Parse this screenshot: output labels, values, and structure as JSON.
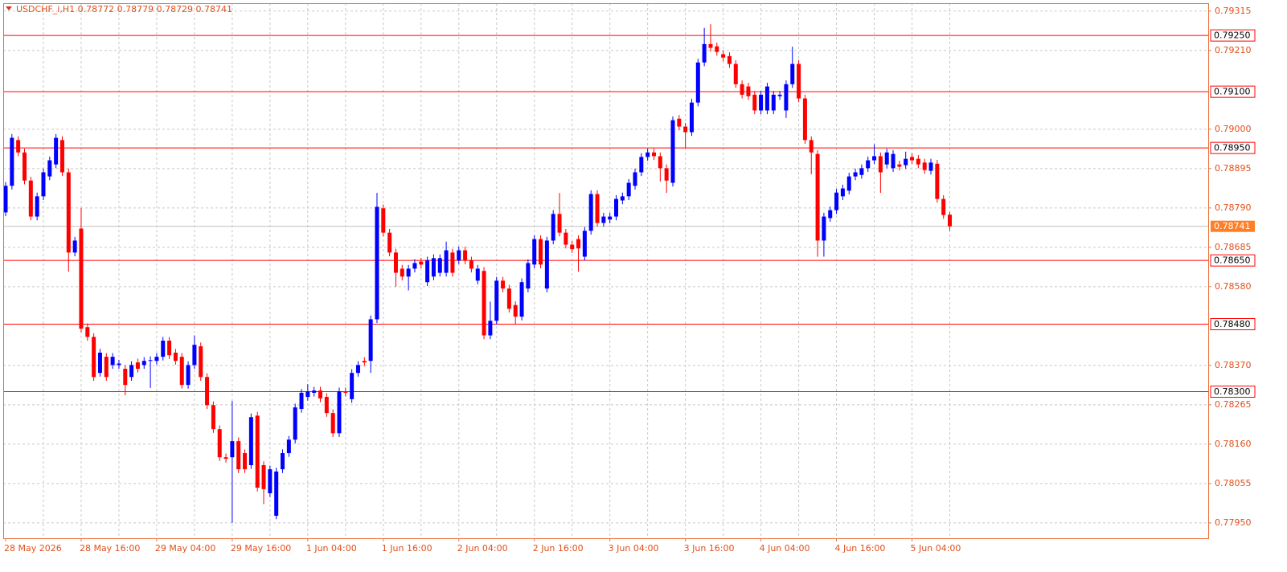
{
  "chart_data": {
    "type": "candlestick",
    "title": "USDCHF_i,H1  0.78772 0.78779 0.78729 0.78741",
    "up_color": "#0000ff",
    "down_color": "#ff0000",
    "level_color": "#ff0000",
    "current_color": "#ff7f27",
    "grid": true,
    "ylim": [
      0.77909,
      0.79336
    ],
    "yticks": [
      {
        "value": 0.79315,
        "label": "0.79315"
      },
      {
        "value": 0.7921,
        "label": "0.79210"
      },
      {
        "value": 0.79,
        "label": "0.79000"
      },
      {
        "value": 0.78895,
        "label": "0.78895"
      },
      {
        "value": 0.7879,
        "label": "0.78790"
      },
      {
        "value": 0.78685,
        "label": "0.78685"
      },
      {
        "value": 0.7858,
        "label": "0.78580"
      },
      {
        "value": 0.7837,
        "label": "0.78370"
      },
      {
        "value": 0.78265,
        "label": "0.78265"
      },
      {
        "value": 0.7816,
        "label": "0.78160"
      },
      {
        "value": 0.78055,
        "label": "0.78055"
      },
      {
        "value": 0.7795,
        "label": "0.77950"
      }
    ],
    "levels": [
      {
        "value": 0.7925,
        "label": "0.79250"
      },
      {
        "value": 0.791,
        "label": "0.79100"
      },
      {
        "value": 0.7895,
        "label": "0.78950"
      },
      {
        "value": 0.7865,
        "label": "0.78650"
      },
      {
        "value": 0.7848,
        "label": "0.78480"
      },
      {
        "value": 0.783,
        "label": "0.78300"
      }
    ],
    "current_price": 0.78741,
    "categories": [
      "28 May 2026",
      null,
      null,
      null,
      null,
      null,
      null,
      null,
      null,
      null,
      null,
      null,
      "28 May 16:00",
      null,
      null,
      null,
      null,
      null,
      null,
      null,
      null,
      null,
      null,
      null,
      "29 May 04:00",
      null,
      null,
      null,
      null,
      null,
      null,
      null,
      null,
      null,
      null,
      null,
      "29 May 16:00",
      null,
      null,
      null,
      null,
      null,
      null,
      null,
      null,
      null,
      null,
      null,
      "1 Jun 04:00",
      null,
      null,
      null,
      null,
      null,
      null,
      null,
      null,
      null,
      null,
      null,
      "1 Jun 16:00",
      null,
      null,
      null,
      null,
      null,
      null,
      null,
      null,
      null,
      null,
      null,
      "2 Jun 04:00",
      null,
      null,
      null,
      null,
      null,
      null,
      null,
      null,
      null,
      null,
      null,
      "2 Jun 16:00",
      null,
      null,
      null,
      null,
      null,
      null,
      null,
      null,
      null,
      null,
      null,
      "3 Jun 04:00",
      null,
      null,
      null,
      null,
      null,
      null,
      null,
      null,
      null,
      null,
      null,
      "3 Jun 16:00",
      null,
      null,
      null,
      null,
      null,
      null,
      null,
      null,
      null,
      null,
      null,
      "4 Jun 04:00",
      null,
      null,
      null,
      null,
      null,
      null,
      null,
      null,
      null,
      null,
      null,
      "4 Jun 16:00",
      null,
      null,
      null,
      null,
      null,
      null,
      null,
      null,
      null,
      null,
      null,
      "5 Jun 04:00",
      null,
      null,
      null,
      null,
      null,
      null
    ],
    "candles": [
      [
        0.78778,
        0.78859,
        0.78768,
        0.78849
      ],
      [
        0.78849,
        0.78987,
        0.78839,
        0.78977
      ],
      [
        0.78971,
        0.78981,
        0.78928,
        0.78938
      ],
      [
        0.78938,
        0.78948,
        0.78853,
        0.78863
      ],
      [
        0.78863,
        0.78873,
        0.78757,
        0.78767
      ],
      [
        0.78767,
        0.78831,
        0.78757,
        0.78821
      ],
      [
        0.78821,
        0.78895,
        0.78811,
        0.78885
      ],
      [
        0.78874,
        0.78927,
        0.78864,
        0.78917
      ],
      [
        0.78906,
        0.78987,
        0.78896,
        0.78977
      ],
      [
        0.78971,
        0.78981,
        0.78875,
        0.78885
      ],
      [
        0.78885,
        0.78895,
        0.7862,
        0.78671
      ],
      [
        0.78671,
        0.78713,
        0.78661,
        0.78703
      ],
      [
        0.78735,
        0.7879,
        0.78458,
        0.78468
      ],
      [
        0.78472,
        0.78482,
        0.78436,
        0.78446
      ],
      [
        0.78446,
        0.78456,
        0.78329,
        0.78339
      ],
      [
        0.7835,
        0.78414,
        0.7834,
        0.78404
      ],
      [
        0.78393,
        0.78403,
        0.78329,
        0.78339
      ],
      [
        0.78371,
        0.78403,
        0.78361,
        0.78393
      ],
      [
        0.78371,
        0.78385,
        0.78361,
        0.78375
      ],
      [
        0.78361,
        0.78371,
        0.7829,
        0.78318
      ],
      [
        0.78339,
        0.78381,
        0.78329,
        0.78371
      ],
      [
        0.78378,
        0.78388,
        0.78351,
        0.78361
      ],
      [
        0.78371,
        0.78392,
        0.78361,
        0.78382
      ],
      [
        0.78382,
        0.78394,
        0.7831,
        0.78384
      ],
      [
        0.78382,
        0.78403,
        0.78372,
        0.78393
      ],
      [
        0.78393,
        0.78446,
        0.78383,
        0.78436
      ],
      [
        0.78436,
        0.78446,
        0.78387,
        0.78397
      ],
      [
        0.78404,
        0.78414,
        0.78372,
        0.78382
      ],
      [
        0.78393,
        0.78403,
        0.78308,
        0.78318
      ],
      [
        0.78318,
        0.78381,
        0.78308,
        0.78371
      ],
      [
        0.78371,
        0.7845,
        0.78361,
        0.78425
      ],
      [
        0.78421,
        0.78431,
        0.78329,
        0.78339
      ],
      [
        0.78339,
        0.78349,
        0.78254,
        0.78264
      ],
      [
        0.78264,
        0.78274,
        0.7819,
        0.782
      ],
      [
        0.782,
        0.7821,
        0.78115,
        0.78125
      ],
      [
        0.78125,
        0.78135,
        0.78111,
        0.78121
      ],
      [
        0.78125,
        0.78275,
        0.7795,
        0.78168
      ],
      [
        0.78168,
        0.78178,
        0.78083,
        0.78093
      ],
      [
        0.78136,
        0.78146,
        0.78083,
        0.78093
      ],
      [
        0.78104,
        0.78242,
        0.78094,
        0.78232
      ],
      [
        0.78236,
        0.78246,
        0.78034,
        0.78044
      ],
      [
        0.78104,
        0.78114,
        0.78,
        0.7804
      ],
      [
        0.78029,
        0.78103,
        0.78019,
        0.78093
      ],
      [
        0.77969,
        0.78097,
        0.7796,
        0.78087
      ],
      [
        0.78093,
        0.78146,
        0.78083,
        0.78136
      ],
      [
        0.78136,
        0.78182,
        0.78126,
        0.78172
      ],
      [
        0.78172,
        0.78268,
        0.78162,
        0.78258
      ],
      [
        0.78254,
        0.78307,
        0.78244,
        0.78297
      ],
      [
        0.78286,
        0.7832,
        0.78276,
        0.78301
      ],
      [
        0.78297,
        0.78313,
        0.78287,
        0.78303
      ],
      [
        0.78303,
        0.78313,
        0.78272,
        0.78282
      ],
      [
        0.78286,
        0.78296,
        0.78233,
        0.78243
      ],
      [
        0.78243,
        0.78253,
        0.78179,
        0.78189
      ],
      [
        0.78189,
        0.78311,
        0.78179,
        0.78301
      ],
      [
        0.78301,
        0.78311,
        0.78287,
        0.78297
      ],
      [
        0.7828,
        0.7836,
        0.7827,
        0.7835
      ],
      [
        0.7835,
        0.78381,
        0.7834,
        0.78371
      ],
      [
        0.78382,
        0.78392,
        0.78368,
        0.78378
      ],
      [
        0.78382,
        0.78503,
        0.7835,
        0.78493
      ],
      [
        0.78493,
        0.7883,
        0.78483,
        0.78793
      ],
      [
        0.78789,
        0.78799,
        0.78714,
        0.78724
      ],
      [
        0.78724,
        0.78734,
        0.78661,
        0.78671
      ],
      [
        0.78671,
        0.78681,
        0.7858,
        0.78617
      ],
      [
        0.78628,
        0.78638,
        0.78597,
        0.78607
      ],
      [
        0.78607,
        0.78638,
        0.7857,
        0.78628
      ],
      [
        0.78628,
        0.78653,
        0.78618,
        0.78643
      ],
      [
        0.78647,
        0.78657,
        0.78629,
        0.78639
      ],
      [
        0.78592,
        0.7866,
        0.78582,
        0.7865
      ],
      [
        0.78607,
        0.78666,
        0.78597,
        0.78656
      ],
      [
        0.78617,
        0.78666,
        0.78607,
        0.78656
      ],
      [
        0.78617,
        0.787,
        0.78607,
        0.78677
      ],
      [
        0.78671,
        0.78681,
        0.78607,
        0.78617
      ],
      [
        0.7865,
        0.78687,
        0.7864,
        0.78677
      ],
      [
        0.78677,
        0.78687,
        0.7864,
        0.7865
      ],
      [
        0.7865,
        0.7866,
        0.78618,
        0.78628
      ],
      [
        0.78596,
        0.78638,
        0.78586,
        0.78628
      ],
      [
        0.78622,
        0.78632,
        0.7844,
        0.7845
      ],
      [
        0.7845,
        0.7854,
        0.7844,
        0.78489
      ],
      [
        0.78489,
        0.78606,
        0.78479,
        0.78596
      ],
      [
        0.78596,
        0.78606,
        0.78565,
        0.78575
      ],
      [
        0.78575,
        0.78585,
        0.78511,
        0.78521
      ],
      [
        0.78531,
        0.78541,
        0.7848,
        0.785
      ],
      [
        0.785,
        0.78602,
        0.7849,
        0.78592
      ],
      [
        0.78575,
        0.78653,
        0.78565,
        0.78643
      ],
      [
        0.78639,
        0.78717,
        0.78629,
        0.78707
      ],
      [
        0.78707,
        0.78717,
        0.78629,
        0.78639
      ],
      [
        0.78575,
        0.78713,
        0.78565,
        0.78703
      ],
      [
        0.78703,
        0.78784,
        0.78693,
        0.78774
      ],
      [
        0.78774,
        0.7883,
        0.78714,
        0.78724
      ],
      [
        0.78724,
        0.78734,
        0.78682,
        0.78692
      ],
      [
        0.78692,
        0.78702,
        0.7867,
        0.7868
      ],
      [
        0.78707,
        0.78717,
        0.7862,
        0.78682
      ],
      [
        0.7866,
        0.78739,
        0.7865,
        0.78729
      ],
      [
        0.78729,
        0.78837,
        0.78719,
        0.78827
      ],
      [
        0.78827,
        0.78837,
        0.7874,
        0.7875
      ],
      [
        0.7875,
        0.78777,
        0.7874,
        0.78767
      ],
      [
        0.78759,
        0.78777,
        0.78749,
        0.78767
      ],
      [
        0.78767,
        0.78824,
        0.78757,
        0.78814
      ],
      [
        0.7881,
        0.78831,
        0.788,
        0.78821
      ],
      [
        0.78821,
        0.78867,
        0.78811,
        0.78857
      ],
      [
        0.78849,
        0.78895,
        0.78839,
        0.78885
      ],
      [
        0.78885,
        0.78936,
        0.78875,
        0.78926
      ],
      [
        0.78926,
        0.78948,
        0.78916,
        0.78938
      ],
      [
        0.78938,
        0.78948,
        0.78918,
        0.78928
      ],
      [
        0.78928,
        0.78938,
        0.7886,
        0.78896
      ],
      [
        0.78896,
        0.78906,
        0.7883,
        0.78863
      ],
      [
        0.78857,
        0.79034,
        0.78847,
        0.79024
      ],
      [
        0.79028,
        0.79038,
        0.78997,
        0.79007
      ],
      [
        0.79007,
        0.79017,
        0.7895,
        0.78992
      ],
      [
        0.78992,
        0.79081,
        0.78982,
        0.79071
      ],
      [
        0.79071,
        0.79188,
        0.79061,
        0.79178
      ],
      [
        0.79178,
        0.7927,
        0.79168,
        0.79227
      ],
      [
        0.79227,
        0.7928,
        0.79207,
        0.79217
      ],
      [
        0.79221,
        0.79231,
        0.79196,
        0.79206
      ],
      [
        0.792,
        0.7921,
        0.79181,
        0.79191
      ],
      [
        0.79195,
        0.79205,
        0.79164,
        0.79174
      ],
      [
        0.79174,
        0.79184,
        0.7911,
        0.7912
      ],
      [
        0.7912,
        0.7913,
        0.79082,
        0.79092
      ],
      [
        0.79114,
        0.79124,
        0.79078,
        0.79088
      ],
      [
        0.79092,
        0.79102,
        0.7904,
        0.7905
      ],
      [
        0.7905,
        0.79102,
        0.7904,
        0.79092
      ],
      [
        0.7905,
        0.79124,
        0.7904,
        0.79114
      ],
      [
        0.7905,
        0.79102,
        0.7904,
        0.79092
      ],
      [
        0.79088,
        0.79102,
        0.79078,
        0.79092
      ],
      [
        0.7905,
        0.7913,
        0.7903,
        0.7912
      ],
      [
        0.7912,
        0.7922,
        0.7911,
        0.79174
      ],
      [
        0.79174,
        0.79184,
        0.79072,
        0.79082
      ],
      [
        0.79082,
        0.79092,
        0.78961,
        0.78971
      ],
      [
        0.78971,
        0.78981,
        0.7888,
        0.78938
      ],
      [
        0.78934,
        0.78944,
        0.7866,
        0.78703
      ],
      [
        0.78703,
        0.78777,
        0.7866,
        0.78767
      ],
      [
        0.78763,
        0.78794,
        0.78753,
        0.78784
      ],
      [
        0.78784,
        0.78841,
        0.78774,
        0.78831
      ],
      [
        0.78821,
        0.78852,
        0.78811,
        0.78842
      ],
      [
        0.78836,
        0.78884,
        0.78826,
        0.78874
      ],
      [
        0.78874,
        0.78895,
        0.78864,
        0.78885
      ],
      [
        0.78878,
        0.78906,
        0.78868,
        0.78896
      ],
      [
        0.78896,
        0.78927,
        0.78886,
        0.78917
      ],
      [
        0.78917,
        0.7896,
        0.78907,
        0.78928
      ],
      [
        0.78928,
        0.78938,
        0.7883,
        0.78885
      ],
      [
        0.78906,
        0.78948,
        0.78896,
        0.78938
      ],
      [
        0.78896,
        0.78944,
        0.78886,
        0.78934
      ],
      [
        0.78906,
        0.78916,
        0.7889,
        0.789
      ],
      [
        0.78904,
        0.7894,
        0.78894,
        0.78921
      ],
      [
        0.78926,
        0.78936,
        0.78907,
        0.78917
      ],
      [
        0.78921,
        0.78931,
        0.78896,
        0.78906
      ],
      [
        0.78911,
        0.78921,
        0.78881,
        0.78891
      ],
      [
        0.78889,
        0.78921,
        0.78879,
        0.78911
      ],
      [
        0.78908,
        0.78918,
        0.78804,
        0.78814
      ],
      [
        0.78814,
        0.78824,
        0.78761,
        0.78771
      ],
      [
        0.78772,
        0.78779,
        0.78729,
        0.78741
      ]
    ]
  }
}
